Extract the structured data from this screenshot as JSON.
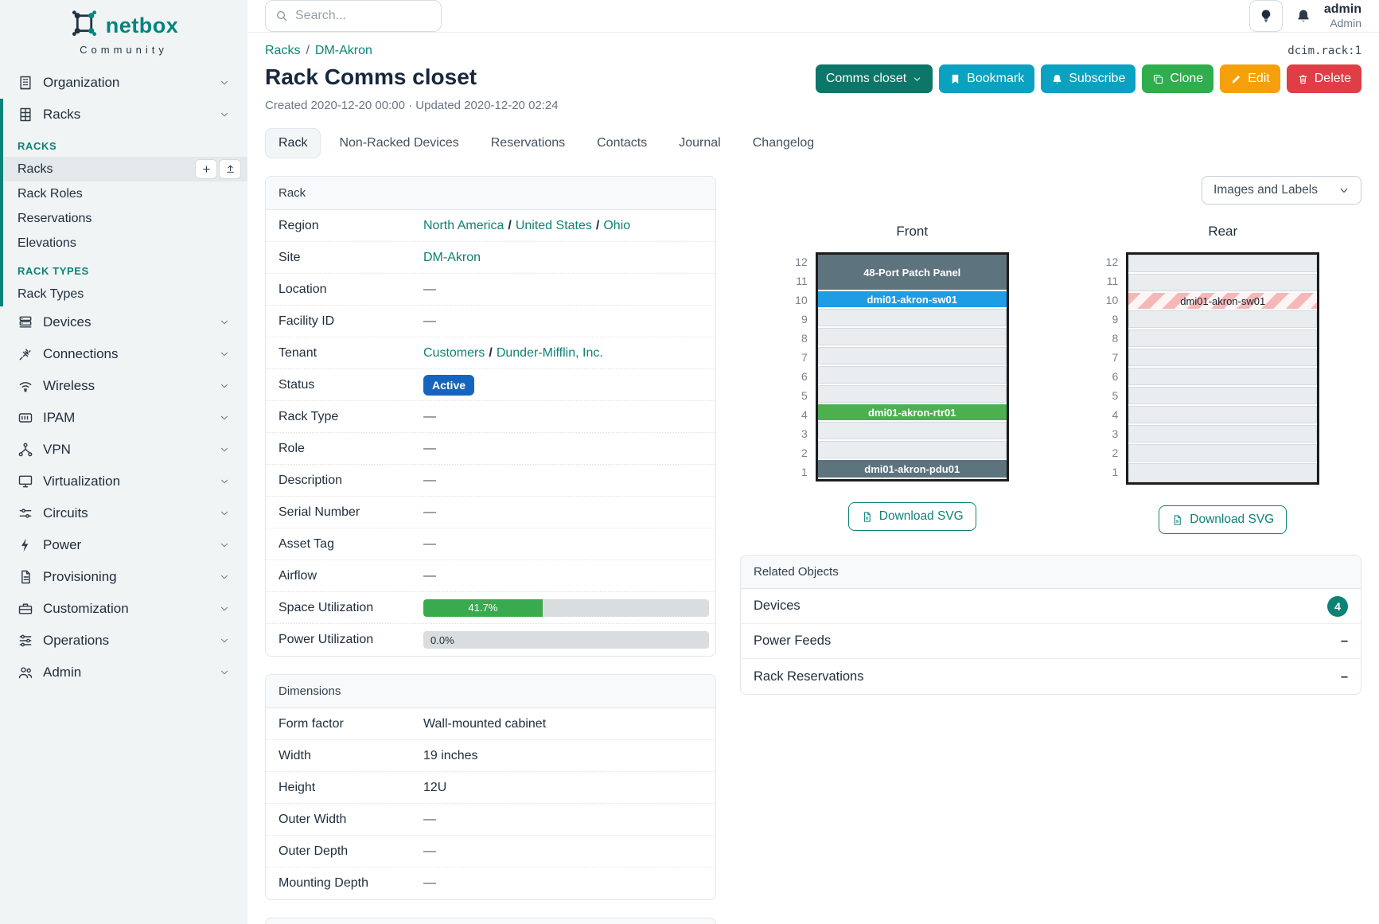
{
  "colors": {
    "accent": "#0d8277",
    "status_active": "#1565c0",
    "utilization_green": "#3aaa4e",
    "elev_slate": "#5d737e",
    "elev_blue": "#1e9ce4",
    "elev_green": "#4cb04f"
  },
  "sidebar": {
    "brand": "netbox",
    "brand_sub": "Community",
    "items": [
      {
        "type": "nav",
        "label": "Organization",
        "icon": "building"
      },
      {
        "type": "nav",
        "label": "Racks",
        "icon": "rack",
        "expanded": true
      },
      {
        "type": "group",
        "label": "RACKS"
      },
      {
        "type": "sub",
        "label": "Racks",
        "active": true,
        "action_icons": [
          "plus",
          "upload"
        ]
      },
      {
        "type": "sub",
        "label": "Rack Roles"
      },
      {
        "type": "sub",
        "label": "Reservations"
      },
      {
        "type": "sub",
        "label": "Elevations"
      },
      {
        "type": "group",
        "label": "RACK TYPES"
      },
      {
        "type": "sub",
        "label": "Rack Types"
      },
      {
        "type": "nav",
        "label": "Devices",
        "icon": "server"
      },
      {
        "type": "nav",
        "label": "Connections",
        "icon": "plug"
      },
      {
        "type": "nav",
        "label": "Wireless",
        "icon": "wifi"
      },
      {
        "type": "nav",
        "label": "IPAM",
        "icon": "ipam"
      },
      {
        "type": "nav",
        "label": "VPN",
        "icon": "network"
      },
      {
        "type": "nav",
        "label": "Virtualization",
        "icon": "monitor"
      },
      {
        "type": "nav",
        "label": "Circuits",
        "icon": "circuits"
      },
      {
        "type": "nav",
        "label": "Power",
        "icon": "bolt"
      },
      {
        "type": "nav",
        "label": "Provisioning",
        "icon": "document"
      },
      {
        "type": "nav",
        "label": "Customization",
        "icon": "briefcase"
      },
      {
        "type": "nav",
        "label": "Operations",
        "icon": "gear"
      },
      {
        "type": "nav",
        "label": "Admin",
        "icon": "users"
      }
    ]
  },
  "header": {
    "search_placeholder": "Search...",
    "user_name": "admin",
    "user_role": "Admin",
    "object_id": "dcim.rack:1"
  },
  "page": {
    "breadcrumb": [
      "Racks",
      "DM-Akron"
    ],
    "title": "Rack Comms closet",
    "meta": "Created 2020-12-20 00:00 · Updated 2020-12-20 02:24",
    "actions": [
      {
        "label": "Comms closet",
        "icon": null,
        "chevron": true,
        "color": "#0c7668",
        "name": "lookup-button"
      },
      {
        "label": "Bookmark",
        "icon": "bookmark",
        "color": "#0aa2c0",
        "name": "bookmark-button"
      },
      {
        "label": "Subscribe",
        "icon": "bell-plus",
        "color": "#0aa2c0",
        "name": "subscribe-button"
      },
      {
        "label": "Clone",
        "icon": "copy",
        "color": "#30ad4d",
        "name": "clone-button"
      },
      {
        "label": "Edit",
        "icon": "pencil",
        "color": "#f5a00a",
        "name": "edit-button"
      },
      {
        "label": "Delete",
        "icon": "trash",
        "color": "#df3e47",
        "name": "delete-button"
      }
    ]
  },
  "tabs": {
    "items": [
      "Rack",
      "Non-Racked Devices",
      "Reservations",
      "Contacts",
      "Journal",
      "Changelog"
    ],
    "active": "Rack"
  },
  "rack_panel": {
    "title": "Rack",
    "rows": [
      {
        "label": "Region",
        "type": "links",
        "parts": [
          "North America",
          "United States",
          "Ohio"
        ]
      },
      {
        "label": "Site",
        "type": "links",
        "parts": [
          "DM-Akron"
        ]
      },
      {
        "label": "Location",
        "type": "dash"
      },
      {
        "label": "Facility ID",
        "type": "dash"
      },
      {
        "label": "Tenant",
        "type": "links",
        "parts": [
          "Customers",
          "Dunder-Mifflin, Inc."
        ]
      },
      {
        "label": "Status",
        "type": "badge",
        "value": "Active"
      },
      {
        "label": "Rack Type",
        "type": "dash"
      },
      {
        "label": "Role",
        "type": "dash"
      },
      {
        "label": "Description",
        "type": "dash"
      },
      {
        "label": "Serial Number",
        "type": "dash"
      },
      {
        "label": "Asset Tag",
        "type": "dash"
      },
      {
        "label": "Airflow",
        "type": "dash"
      },
      {
        "label": "Space Utilization",
        "type": "progress",
        "percent": 41.7,
        "display": "41.7%"
      },
      {
        "label": "Power Utilization",
        "type": "progress",
        "percent": 0.0,
        "display": "0.0%"
      }
    ]
  },
  "dimensions_panel": {
    "title": "Dimensions",
    "rows": [
      {
        "label": "Form factor",
        "type": "text",
        "value": "Wall-mounted cabinet"
      },
      {
        "label": "Width",
        "type": "text",
        "value": "19 inches"
      },
      {
        "label": "Height",
        "type": "text",
        "value": "12U"
      },
      {
        "label": "Outer Width",
        "type": "dash"
      },
      {
        "label": "Outer Depth",
        "type": "dash"
      },
      {
        "label": "Mounting Depth",
        "type": "dash"
      }
    ]
  },
  "elevations": {
    "view_selector": "Images and Labels",
    "unit_count": 12,
    "download_label": "Download SVG",
    "views": [
      {
        "title": "Front",
        "devices": [
          {
            "name": "48-Port Patch Panel",
            "top_unit": 12,
            "span": 2,
            "style": "slate"
          },
          {
            "name": "dmi01-akron-sw01",
            "top_unit": 10,
            "span": 1,
            "style": "blue"
          },
          {
            "name": "dmi01-akron-rtr01",
            "top_unit": 4,
            "span": 1,
            "style": "green"
          },
          {
            "name": "dmi01-akron-pdu01",
            "top_unit": 1,
            "span": 1,
            "style": "slate"
          }
        ]
      },
      {
        "title": "Rear",
        "devices": [
          {
            "name": "dmi01-akron-sw01",
            "top_unit": 10,
            "span": 1,
            "style": "striped"
          }
        ]
      }
    ]
  },
  "related_objects": {
    "title": "Related Objects",
    "rows": [
      {
        "label": "Devices",
        "count": "4"
      },
      {
        "label": "Power Feeds",
        "count": null
      },
      {
        "label": "Rack Reservations",
        "count": null
      }
    ]
  }
}
